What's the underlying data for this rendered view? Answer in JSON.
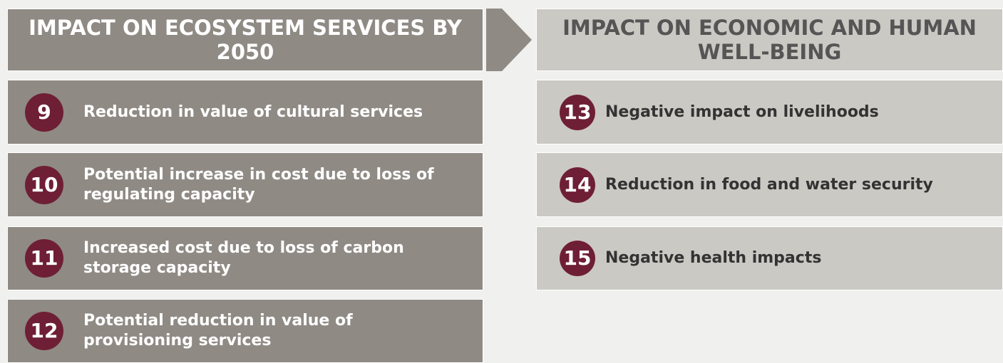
{
  "left": {
    "title": "IMPACT ON ECOSYSTEM SERVICES BY 2050",
    "items": [
      {
        "number": "9",
        "text": "Reduction in value of cultural services"
      },
      {
        "number": "10",
        "text": "Potential increase in cost due to loss of regulating capacity"
      },
      {
        "number": "11",
        "text": "Increased cost due to loss of carbon storage capacity"
      },
      {
        "number": "12",
        "text": "Potential reduction in value of provisioning services"
      }
    ]
  },
  "right": {
    "title": "IMPACT ON ECONOMIC AND HUMAN WELL-BEING",
    "items": [
      {
        "number": "13",
        "text": "Negative impact on livelihoods"
      },
      {
        "number": "14",
        "text": "Reduction in food and water security"
      },
      {
        "number": "15",
        "text": "Negative health impacts"
      }
    ]
  }
}
